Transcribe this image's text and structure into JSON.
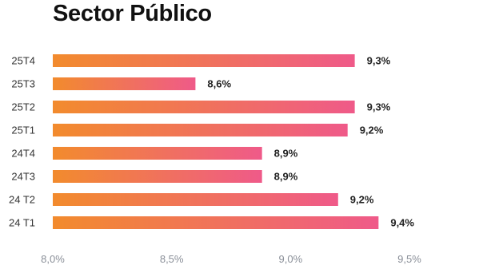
{
  "chart_data": {
    "type": "bar",
    "orientation": "horizontal",
    "title": "Sector Público",
    "xlabel": "",
    "ylabel": "",
    "categories": [
      "25T4",
      "25T3",
      "25T2",
      "25T1",
      "24T4",
      "24T3",
      "24 T2",
      "24 T1"
    ],
    "values": [
      9.27,
      8.6,
      9.27,
      9.24,
      8.88,
      8.88,
      9.2,
      9.37
    ],
    "value_labels": [
      "9,3%",
      "8,6%",
      "9,3%",
      "9,2%",
      "8,9%",
      "8,9%",
      "9,2%",
      "9,4%"
    ],
    "xlim": [
      8.0,
      9.5
    ],
    "xticks": [
      8.0,
      8.5,
      9.0,
      9.5
    ],
    "xtick_labels": [
      "8,0%",
      "8,5%",
      "9,0%",
      "9,5%"
    ],
    "grid": false,
    "legend": "none",
    "bar_gradient": [
      "#f28b2d",
      "#ef5a89"
    ]
  }
}
